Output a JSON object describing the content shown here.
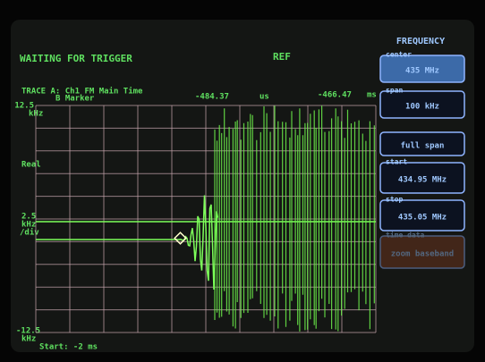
{
  "header": {
    "status": "WAITING FOR TRIGGER",
    "ref": "REF"
  },
  "trace": {
    "label": "TRACE A: Ch1 FM Main Time",
    "marker": "B Marker",
    "marker_time": "-484.37",
    "marker_unit": "us",
    "cursor_time": "-466.47",
    "cursor_unit": "ms",
    "mode": "Real",
    "top": [
      "12.5",
      "kHz"
    ],
    "scale": [
      "2.5",
      "kHz",
      "/div"
    ],
    "bottom": [
      "-12.5",
      "kHz"
    ],
    "start": "Start: -2 ms"
  },
  "menu": {
    "title": "FREQUENCY",
    "items": [
      {
        "label": "center",
        "value": "435 MHz"
      },
      {
        "label": "span",
        "value": "100 kHz"
      },
      {
        "value": "full span"
      },
      {
        "label": "start",
        "value": "434.95 MHz"
      },
      {
        "label": "stop",
        "value": "435.05 MHz"
      },
      {
        "label": "time data",
        "value": "zoom baseband"
      }
    ]
  }
}
